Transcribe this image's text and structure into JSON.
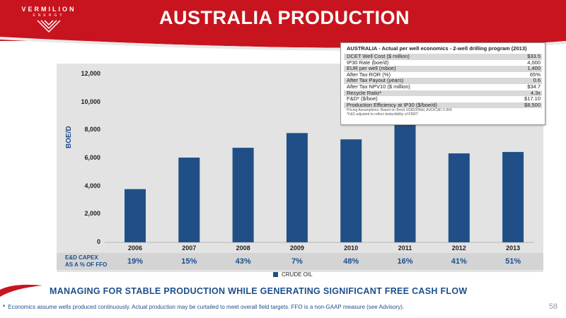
{
  "header": {
    "logo_name": "VERMILION",
    "logo_sub": "ENERGY",
    "title": "AUSTRALIA PRODUCTION"
  },
  "colors": {
    "brand_red": "#c8141e",
    "bar_blue": "#1f4f86",
    "text_blue": "#1c4f8c"
  },
  "chart_data": {
    "type": "bar",
    "categories": [
      "2006",
      "2007",
      "2008",
      "2009",
      "2010",
      "2011",
      "2012",
      "2013"
    ],
    "series": [
      {
        "name": "CRUDE OIL",
        "values": [
          3800,
          6050,
          6750,
          7800,
          7350,
          8600,
          6350,
          6450
        ]
      }
    ],
    "ylabel": "BOE/D",
    "ylim": [
      0,
      12000
    ],
    "yticks": [
      "0",
      "2,000",
      "4,000",
      "6,000",
      "8,000",
      "10,000",
      "12,000"
    ],
    "legend": "bottom-center",
    "grid": false
  },
  "capex": {
    "label_line1": "E&D CAPEX",
    "label_line2": "AS A % OF FFO",
    "values": [
      "19%",
      "15%",
      "43%",
      "7%",
      "48%",
      "16%",
      "41%",
      "51%"
    ]
  },
  "table": {
    "title": "AUSTRALIA - Actual per well economics - 2-well drilling program (2013)",
    "rows": [
      {
        "label": "DCET Well Cost ($ million)",
        "value": "$33.5"
      },
      {
        "label": "IP30 Rate (boe/d)",
        "value": "4,000"
      },
      {
        "label": "EUR per well (mboe)",
        "value": "1,400"
      },
      {
        "label": "After Tax ROR (%)",
        "value": "65%"
      },
      {
        "label": "After Tax Payout (years)",
        "value": "0.6"
      },
      {
        "label": "After Tax NPV10 ($ million)",
        "value": "$34.7"
      },
      {
        "label": "Recycle Ratio*",
        "value": "4.3x"
      },
      {
        "label": "F&D* ($/boe)",
        "value": "$17.10"
      },
      {
        "label": "Production Efficiency at IP30 ($/boe/d)",
        "value": "$8,500"
      }
    ],
    "note1": "Pricing Assumptions: Based on Brent US$100/bbl, AUD/CAD 0.964",
    "note2": "*F&D adjusted to reflect deductibility of PRRT"
  },
  "subtitle": "MANAGING FOR STABLE PRODUCTION WHILE GENERATING SIGNIFICANT FREE CASH FLOW",
  "footnote": {
    "bullet": "*",
    "text": "Economics assume wells produced continuously.  Actual production may be curtailed to meet overall field targets.  FFO is a non-GAAP measure (see Advisory)."
  },
  "page_number": "58"
}
